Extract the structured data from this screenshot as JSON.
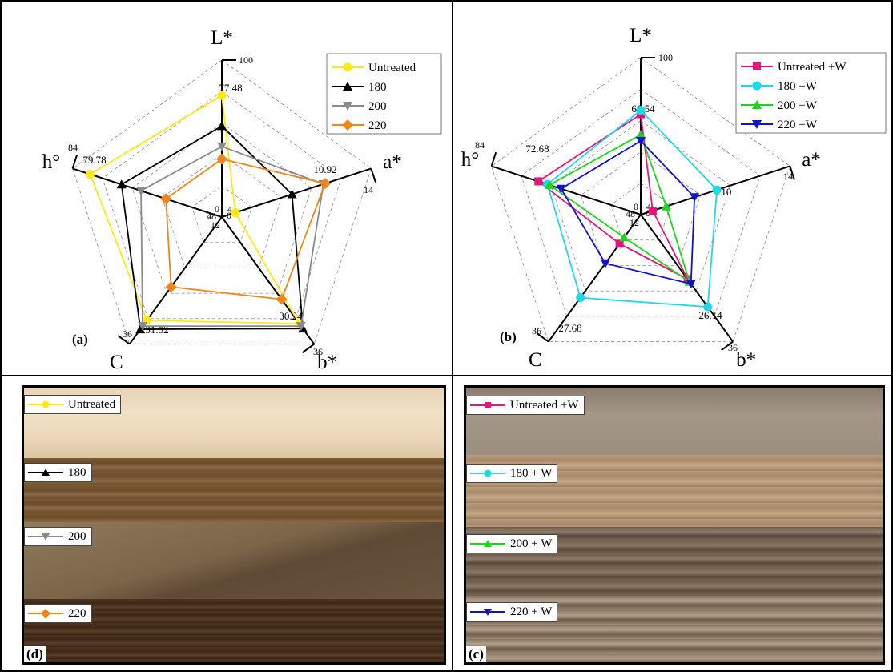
{
  "chart_data": [
    {
      "panel": "(a)",
      "type": "radar",
      "axes": [
        "L*",
        "a*",
        "b*",
        "C",
        "h°"
      ],
      "axis_max": [
        "100",
        "14",
        "36",
        "36",
        "84"
      ],
      "axis_min": [
        "0",
        "4",
        "0",
        "12",
        "48"
      ],
      "scale": {
        "L*": [
          0,
          100
        ],
        "a*": [
          4,
          14
        ],
        "b*": [
          0,
          36
        ],
        "C": [
          12,
          36
        ],
        "h°": [
          48,
          84
        ]
      },
      "value_labels": [
        "77.48",
        "10.92",
        "30.24",
        "31.52",
        "79.78"
      ],
      "series": [
        {
          "name": "Untreated",
          "color": "#ffe81a",
          "marker": "circle",
          "values": [
            77.48,
            4.9,
            30.24,
            31.52,
            79.78
          ]
        },
        {
          "name": "180",
          "color": "#000000",
          "marker": "triangle-up",
          "values": [
            58,
            8.7,
            31.6,
            33.2,
            72.2
          ]
        },
        {
          "name": "200",
          "color": "#8a8a8a",
          "marker": "triangle-down",
          "values": [
            45,
            10.8,
            30.9,
            32.6,
            67.5
          ]
        },
        {
          "name": "220",
          "color": "#f08519",
          "marker": "diamond",
          "values": [
            37,
            10.92,
            23.3,
            25.2,
            61.5
          ]
        }
      ],
      "legend": "top-right",
      "grid": true
    },
    {
      "panel": "(b)",
      "type": "radar",
      "axes": [
        "L*",
        "a*",
        "b*",
        "C",
        "h°"
      ],
      "axis_max": [
        "100",
        "14",
        "36",
        "36",
        "84"
      ],
      "axis_min": [
        "0",
        "4",
        "0",
        "12",
        "48"
      ],
      "scale": {
        "L*": [
          0,
          100
        ],
        "a*": [
          4,
          14
        ],
        "b*": [
          0,
          36
        ],
        "C": [
          12,
          36
        ],
        "h°": [
          48,
          84
        ]
      },
      "value_labels": [
        "66.54",
        "9.10",
        "26.14",
        "27.68",
        "72.68"
      ],
      "series": [
        {
          "name": "Untreated +W",
          "color": "#e3157a",
          "marker": "square",
          "values": [
            64,
            4.8,
            18.3,
            17.5,
            72.68
          ]
        },
        {
          "name": "180 +W",
          "color": "#1fd8e8",
          "marker": "circle",
          "values": [
            66.54,
            9.1,
            26.14,
            27.68,
            70.5
          ]
        },
        {
          "name": "200 +W",
          "color": "#1bd61b",
          "marker": "triangle-up",
          "values": [
            51,
            5.7,
            19.0,
            16.3,
            70.0
          ]
        },
        {
          "name": "220 +W",
          "color": "#1212c8",
          "marker": "triangle-down",
          "values": [
            47,
            7.6,
            19.6,
            21.2,
            67.2
          ]
        }
      ],
      "legend": "top-right",
      "grid": true
    }
  ],
  "photos": {
    "d": {
      "tag": "(d)",
      "labels": [
        "Untreated",
        "180",
        "200",
        "220"
      ]
    },
    "c": {
      "tag": "(c)",
      "labels": [
        "Untreated +W",
        "180 + W",
        "200 + W",
        "220 + W"
      ]
    }
  }
}
